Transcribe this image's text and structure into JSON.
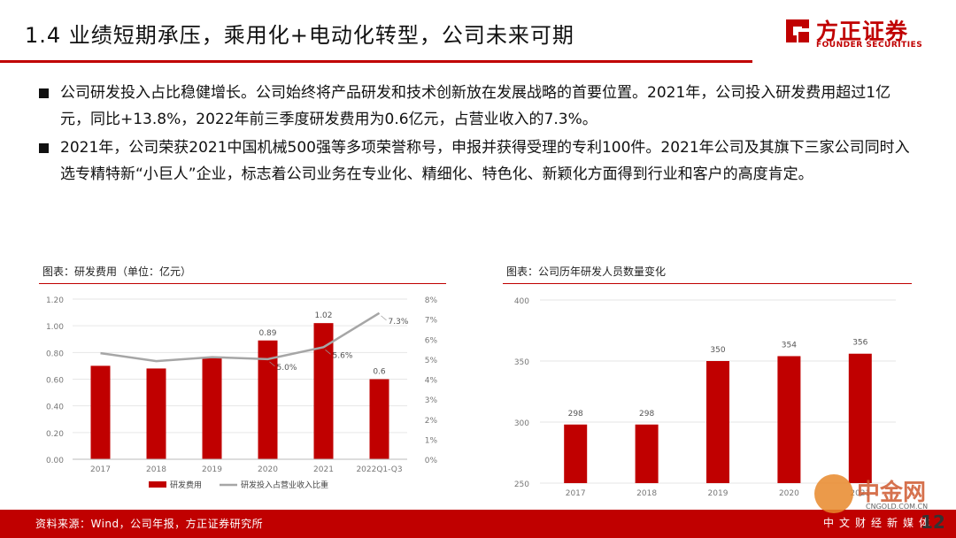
{
  "title": "1.4 业绩短期承压，乘用化+电动化转型，公司未来可期",
  "logo": {
    "cn": "方正证券",
    "en": "FOUNDER SECURITIES"
  },
  "bullets": [
    "公司研发投入占比稳健增长。公司始终将产品研发和技术创新放在发展战略的首要位置。2021年，公司投入研发费用超过1亿元，同比+13.8%，2022年前三季度研发费用为0.6亿元，占营业收入的7.3%。",
    "2021年，公司荣获2021中国机械500强等多项荣誉称号，申报并获得受理的专利100件。2021年公司及其旗下三家公司同时入选专精特新“小巨人”企业，标志着公司业务在专业化、精细化、特色化、新颖化方面得到行业和客户的高度肯定。"
  ],
  "chart_data": [
    {
      "type": "bar",
      "title": "图表：研发费用（单位：亿元）",
      "categories": [
        "2017",
        "2018",
        "2019",
        "2020",
        "2021",
        "2022Q1-Q3"
      ],
      "series": [
        {
          "name": "研发费用",
          "axis": "left",
          "type": "bar",
          "color": "#c00000",
          "values": [
            0.7,
            0.68,
            0.76,
            0.89,
            1.02,
            0.6
          ],
          "labels": [
            "",
            "",
            "",
            "0.89",
            "1.02",
            "0.6"
          ]
        },
        {
          "name": "研发投入占营业收入比重",
          "axis": "right",
          "type": "line",
          "color": "#a6a6a6",
          "values": [
            5.3,
            4.9,
            5.1,
            5.0,
            5.6,
            7.3
          ],
          "labels": [
            "",
            "",
            "",
            "5.0%",
            "5.6%",
            "7.3%"
          ]
        }
      ],
      "left_ticks": [
        "0.00",
        "0.20",
        "0.40",
        "0.60",
        "0.80",
        "1.00",
        "1.20"
      ],
      "right_ticks": [
        "0%",
        "1%",
        "2%",
        "3%",
        "4%",
        "5%",
        "6%",
        "7%",
        "8%"
      ],
      "ylim": [
        0,
        1.2
      ],
      "ylim_right": [
        0,
        8
      ],
      "legend_position": "bottom"
    },
    {
      "type": "bar",
      "title": "图表：公司历年研发人员数量变化",
      "categories": [
        "2017",
        "2018",
        "2019",
        "2020",
        "2021"
      ],
      "series": [
        {
          "name": "",
          "type": "bar",
          "color": "#c00000",
          "values": [
            298,
            298,
            350,
            354,
            356
          ],
          "labels": [
            "298",
            "298",
            "350",
            "354",
            "356"
          ]
        }
      ],
      "left_ticks": [
        "250",
        "300",
        "350",
        "400"
      ],
      "ylim": [
        250,
        400
      ]
    }
  ],
  "source": "资料来源：Wind，公司年报，方正证券研究所",
  "watermark": {
    "brand": "中金网",
    "url": "CNGOLD.COM.CN",
    "sub": "中文财经新媒体"
  },
  "page_number": "12"
}
